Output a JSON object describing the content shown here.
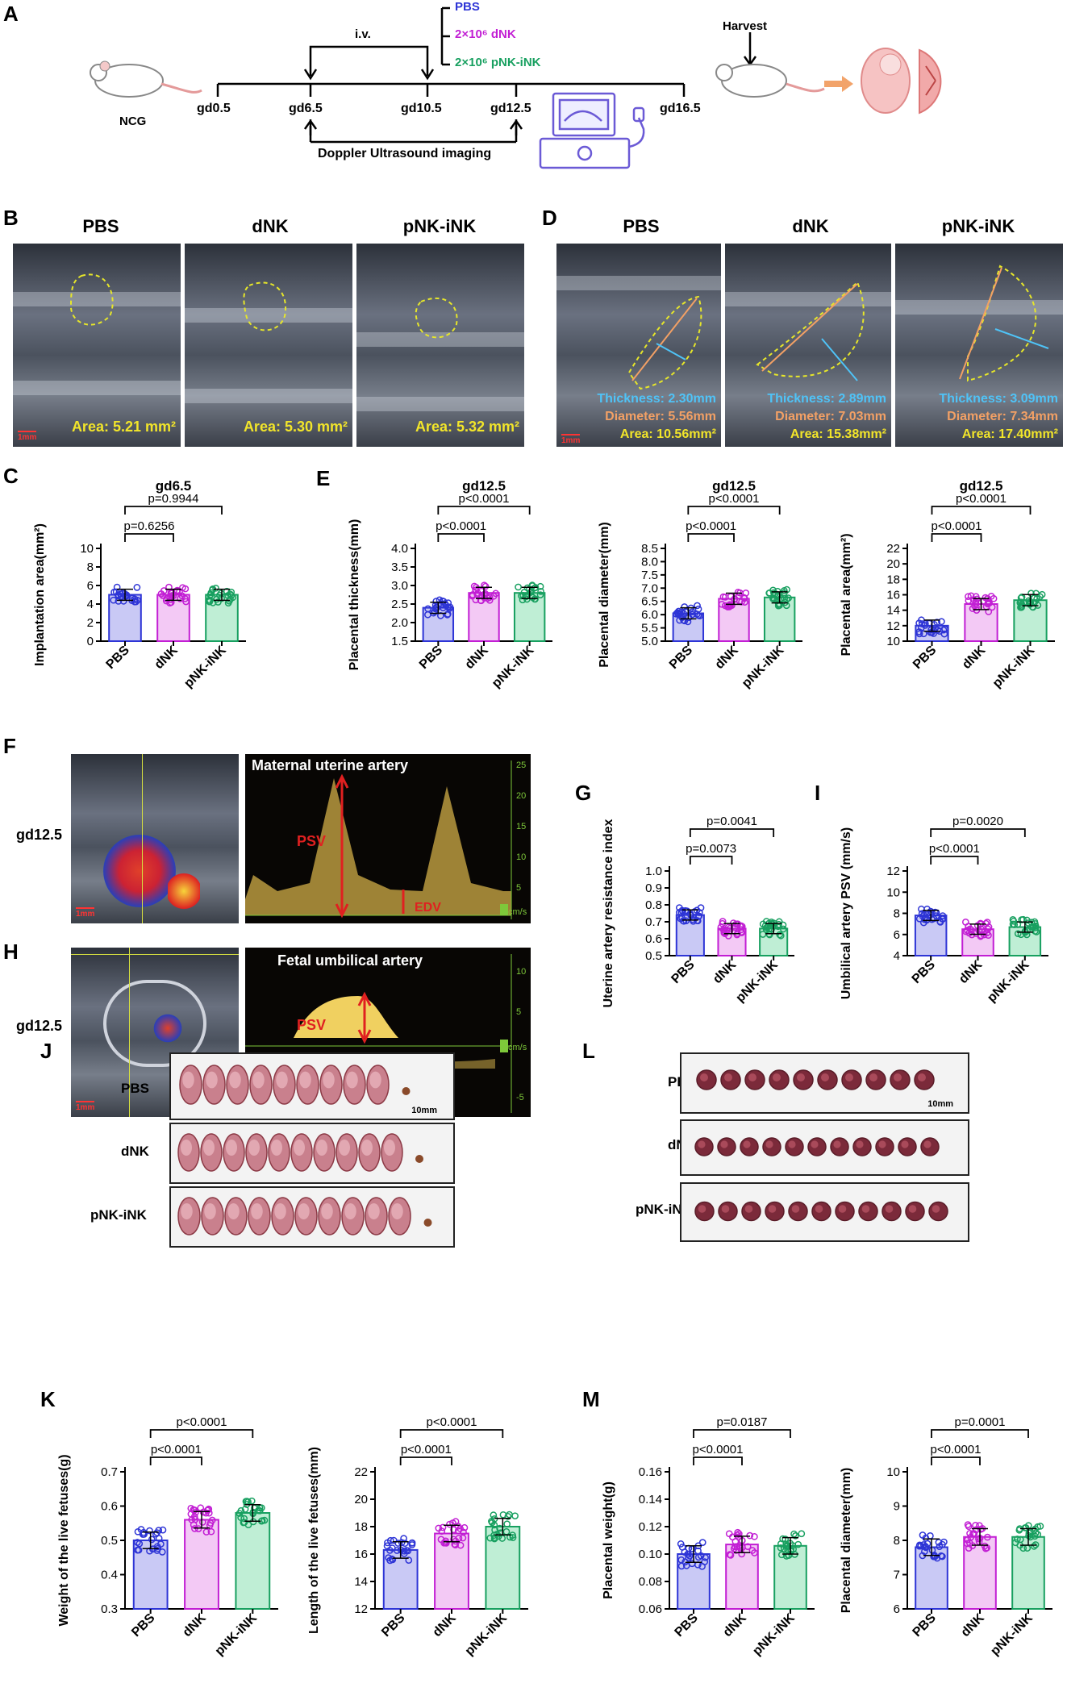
{
  "panels": {
    "A": "A",
    "B": "B",
    "C": "C",
    "D": "D",
    "E": "E",
    "F": "F",
    "G": "G",
    "H": "H",
    "I": "I",
    "J": "J",
    "K": "K",
    "L": "L",
    "M": "M"
  },
  "schematic": {
    "mouse_label": "NCG",
    "timepoints": [
      "gd0.5",
      "gd6.5",
      "gd10.5",
      "gd12.5",
      "gd16.5"
    ],
    "iv_label": "i.v.",
    "groups": [
      "PBS",
      "2×10⁶ dNK",
      "2×10⁶ pNK-iNK"
    ],
    "group_colors": [
      "#2e35d6",
      "#c21fd4",
      "#18a060"
    ],
    "doppler": "Doppler Ultrasound imaging",
    "harvest": "Harvest"
  },
  "B": {
    "headers": [
      "PBS",
      "dNK",
      "pNK-iNK"
    ],
    "areas": [
      "Area: 5.21 mm²",
      "Area: 5.30 mm²",
      "Area: 5.32 mm²"
    ],
    "scale": "1mm"
  },
  "D": {
    "headers": [
      "PBS",
      "dNK",
      "pNK-iNK"
    ],
    "thickness": [
      "Thickness: 2.30mm",
      "Thickness: 2.89mm",
      "Thickness: 3.09mm"
    ],
    "diameter": [
      "Diameter: 5.56mm",
      "Diameter: 7.03mm",
      "Diameter: 7.34mm"
    ],
    "area": [
      "Area: 10.56mm²",
      "Area: 15.38mm²",
      "Area: 17.40mm²"
    ],
    "scale": "1mm"
  },
  "F": {
    "gd": "gd12.5",
    "title": "Maternal uterine artery",
    "psv": "PSV",
    "edv": "EDV",
    "unit": "cm/s",
    "ticks": [
      "25",
      "20",
      "15",
      "10",
      "5"
    ],
    "scale": "1mm"
  },
  "H": {
    "gd": "gd12.5",
    "title": "Fetal umbilical artery",
    "psv": "PSV",
    "unit": "cm/s",
    "ticks": [
      "10",
      "5",
      "-5"
    ],
    "scale": "1mm"
  },
  "J": {
    "rows": [
      "PBS",
      "dNK",
      "pNK-iNK"
    ],
    "scale": "10mm"
  },
  "L": {
    "rows": [
      "PBS",
      "dNK",
      "pNK-iNK"
    ],
    "scale": "10mm"
  },
  "bar_colors": {
    "fill": [
      "#c9c9f5",
      "#f3c9f5",
      "#bfeed5"
    ],
    "edge": [
      "#2e35d6",
      "#c21fd4",
      "#18a060"
    ]
  },
  "chart_data": [
    {
      "id": "C",
      "type": "bar",
      "title": "gd6.5",
      "ylabel": "Implantation area(mm²)",
      "categories": [
        "PBS",
        "dNK",
        "pNK-iNK"
      ],
      "values": [
        5.0,
        5.0,
        5.0
      ],
      "ylim": [
        0,
        10
      ],
      "yticks": [
        0,
        2,
        4,
        6,
        8,
        10
      ],
      "comparisons": [
        {
          "label": "p=0.6256",
          "to": 1
        },
        {
          "label": "p=0.9944",
          "to": 2
        }
      ]
    },
    {
      "id": "E1",
      "type": "bar",
      "title": "gd12.5",
      "ylabel": "Placental thickness(mm)",
      "categories": [
        "PBS",
        "dNK",
        "pNK-iNK"
      ],
      "values": [
        2.4,
        2.8,
        2.8
      ],
      "ylim": [
        1.5,
        4.0
      ],
      "yticks": [
        1.5,
        2.0,
        2.5,
        3.0,
        3.5,
        4.0
      ],
      "comparisons": [
        {
          "label": "p<0.0001",
          "to": 1
        },
        {
          "label": "p<0.0001",
          "to": 2
        }
      ]
    },
    {
      "id": "E2",
      "type": "bar",
      "title": "gd12.5",
      "ylabel": "Placental diameter(mm)",
      "categories": [
        "PBS",
        "dNK",
        "pNK-iNK"
      ],
      "values": [
        6.05,
        6.6,
        6.65
      ],
      "ylim": [
        5.0,
        8.5
      ],
      "yticks": [
        5.0,
        5.5,
        6.0,
        6.5,
        7.0,
        7.5,
        8.0,
        8.5
      ],
      "comparisons": [
        {
          "label": "p<0.0001",
          "to": 1
        },
        {
          "label": "p<0.0001",
          "to": 2
        }
      ]
    },
    {
      "id": "E3",
      "type": "bar",
      "title": "gd12.5",
      "ylabel": "Placental area(mm²)",
      "categories": [
        "PBS",
        "dNK",
        "pNK-iNK"
      ],
      "values": [
        12.0,
        14.8,
        15.3
      ],
      "ylim": [
        10,
        22
      ],
      "yticks": [
        10,
        12,
        14,
        16,
        18,
        20,
        22
      ],
      "comparisons": [
        {
          "label": "p<0.0001",
          "to": 1
        },
        {
          "label": "p<0.0001",
          "to": 2
        }
      ]
    },
    {
      "id": "G",
      "type": "bar",
      "title": "",
      "ylabel": "Uterine artery resistance index",
      "categories": [
        "PBS",
        "dNK",
        "pNK-iNK"
      ],
      "values": [
        0.74,
        0.66,
        0.66
      ],
      "ylim": [
        0.5,
        1.0
      ],
      "yticks": [
        0.5,
        0.6,
        0.7,
        0.8,
        0.9,
        1.0
      ],
      "comparisons": [
        {
          "label": "p=0.0073",
          "to": 1
        },
        {
          "label": "p=0.0041",
          "to": 2
        }
      ]
    },
    {
      "id": "I",
      "type": "bar",
      "title": "",
      "ylabel": "Umbilical artery PSV (mm/s)",
      "categories": [
        "PBS",
        "dNK",
        "pNK-iNK"
      ],
      "values": [
        7.8,
        6.5,
        6.7
      ],
      "ylim": [
        4,
        12
      ],
      "yticks": [
        4,
        6,
        8,
        10,
        12
      ],
      "comparisons": [
        {
          "label": "p<0.0001",
          "to": 1
        },
        {
          "label": "p=0.0020",
          "to": 2
        }
      ]
    },
    {
      "id": "K1",
      "type": "bar",
      "title": "",
      "ylabel": "Weight of the live fetuses(g)",
      "categories": [
        "PBS",
        "dNK",
        "pNK-iNK"
      ],
      "values": [
        0.5,
        0.56,
        0.58
      ],
      "ylim": [
        0.3,
        0.7
      ],
      "yticks": [
        0.3,
        0.4,
        0.5,
        0.6,
        0.7
      ],
      "comparisons": [
        {
          "label": "p<0.0001",
          "to": 1
        },
        {
          "label": "p<0.0001",
          "to": 2
        }
      ]
    },
    {
      "id": "K2",
      "type": "bar",
      "title": "",
      "ylabel": "Length of the live fetuses(mm)",
      "categories": [
        "PBS",
        "dNK",
        "pNK-iNK"
      ],
      "values": [
        16.3,
        17.5,
        18.0
      ],
      "ylim": [
        12,
        22
      ],
      "yticks": [
        12,
        14,
        16,
        18,
        20,
        22
      ],
      "comparisons": [
        {
          "label": "p<0.0001",
          "to": 1
        },
        {
          "label": "p<0.0001",
          "to": 2
        }
      ]
    },
    {
      "id": "M1",
      "type": "bar",
      "title": "",
      "ylabel": "Placental weight(g)",
      "categories": [
        "PBS",
        "dNK",
        "pNK-iNK"
      ],
      "values": [
        0.1,
        0.107,
        0.106
      ],
      "ylim": [
        0.06,
        0.16
      ],
      "yticks": [
        0.06,
        0.08,
        0.1,
        0.12,
        0.14,
        0.16
      ],
      "comparisons": [
        {
          "label": "p<0.0001",
          "to": 1
        },
        {
          "label": "p=0.0187",
          "to": 2
        }
      ]
    },
    {
      "id": "M2",
      "type": "bar",
      "title": "",
      "ylabel": "Placental diameter(mm)",
      "categories": [
        "PBS",
        "dNK",
        "pNK-iNK"
      ],
      "values": [
        7.8,
        8.1,
        8.1
      ],
      "ylim": [
        6,
        10
      ],
      "yticks": [
        6,
        7,
        8,
        9,
        10
      ],
      "comparisons": [
        {
          "label": "p<0.0001",
          "to": 1
        },
        {
          "label": "p=0.0001",
          "to": 2
        }
      ]
    }
  ]
}
